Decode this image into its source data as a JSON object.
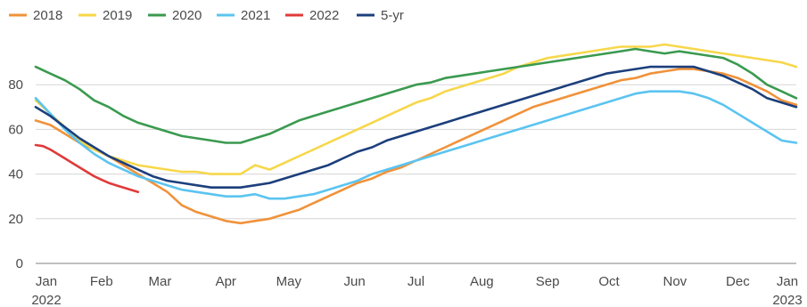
{
  "chart_data": {
    "type": "line",
    "title": "",
    "xlabel": "",
    "ylabel": "",
    "ylim": [
      0,
      100
    ],
    "grid": true,
    "legend_position": "top-left",
    "y_ticks": [
      "0",
      "20",
      "40",
      "60",
      "80"
    ],
    "x_ticks": [
      {
        "label": "Jan",
        "sublabel": "2022",
        "week": 1
      },
      {
        "label": "Feb",
        "sublabel": "",
        "week": 5.5
      },
      {
        "label": "Mar",
        "sublabel": "",
        "week": 9.5
      },
      {
        "label": "Apr",
        "sublabel": "",
        "week": 14
      },
      {
        "label": "May",
        "sublabel": "",
        "week": 18.3
      },
      {
        "label": "Jun",
        "sublabel": "",
        "week": 22.8
      },
      {
        "label": "Jul",
        "sublabel": "",
        "week": 27
      },
      {
        "label": "Aug",
        "sublabel": "",
        "week": 31.5
      },
      {
        "label": "Sep",
        "sublabel": "",
        "week": 36
      },
      {
        "label": "Oct",
        "sublabel": "",
        "week": 40.2
      },
      {
        "label": "Nov",
        "sublabel": "",
        "week": 44.7
      },
      {
        "label": "Dec",
        "sublabel": "",
        "week": 49
      },
      {
        "label": "Jan",
        "sublabel": "2023",
        "week": 53
      }
    ],
    "series": [
      {
        "name": "2018",
        "color": "#f0923a",
        "x": [
          1,
          2,
          3,
          4,
          5,
          6,
          7,
          8,
          9,
          10,
          11,
          12,
          13,
          14,
          15,
          16,
          17,
          18,
          19,
          20,
          21,
          22,
          23,
          24,
          25,
          26,
          27,
          28,
          29,
          30,
          31,
          32,
          33,
          34,
          35,
          36,
          37,
          38,
          39,
          40,
          41,
          42,
          43,
          44,
          45,
          46,
          47,
          48,
          49,
          50,
          51,
          52,
          53
        ],
        "values": [
          64,
          62,
          58,
          54,
          51,
          48,
          44,
          40,
          36,
          32,
          26,
          23,
          21,
          19,
          18,
          19,
          20,
          22,
          24,
          27,
          30,
          33,
          36,
          38,
          41,
          43,
          46,
          49,
          52,
          55,
          58,
          61,
          64,
          67,
          70,
          72,
          74,
          76,
          78,
          80,
          82,
          83,
          85,
          86,
          87,
          87,
          86,
          85,
          83,
          80,
          77,
          73,
          71
        ]
      },
      {
        "name": "2019",
        "color": "#f7d74a",
        "x": [
          1,
          2,
          3,
          4,
          5,
          6,
          7,
          8,
          9,
          10,
          11,
          12,
          13,
          14,
          15,
          16,
          17,
          18,
          19,
          20,
          21,
          22,
          23,
          24,
          25,
          26,
          27,
          28,
          29,
          30,
          31,
          32,
          33,
          34,
          35,
          36,
          37,
          38,
          39,
          40,
          41,
          42,
          43,
          44,
          45,
          46,
          47,
          48,
          49,
          50,
          51,
          52,
          53
        ],
        "values": [
          73,
          67,
          61,
          55,
          51,
          48,
          46,
          44,
          43,
          42,
          41,
          41,
          40,
          40,
          40,
          44,
          42,
          45,
          48,
          51,
          54,
          57,
          60,
          63,
          66,
          69,
          72,
          74,
          77,
          79,
          81,
          83,
          85,
          88,
          90,
          92,
          93,
          94,
          95,
          96,
          97,
          97,
          97,
          98,
          97,
          96,
          95,
          94,
          93,
          92,
          91,
          90,
          88
        ]
      },
      {
        "name": "2020",
        "color": "#3a9a4f",
        "x": [
          1,
          2,
          3,
          4,
          5,
          6,
          7,
          8,
          9,
          10,
          11,
          12,
          13,
          14,
          15,
          16,
          17,
          18,
          19,
          20,
          21,
          22,
          23,
          24,
          25,
          26,
          27,
          28,
          29,
          30,
          31,
          32,
          33,
          34,
          35,
          36,
          37,
          38,
          39,
          40,
          41,
          42,
          43,
          44,
          45,
          46,
          47,
          48,
          49,
          50,
          51,
          52,
          53
        ],
        "values": [
          88,
          85,
          82,
          78,
          73,
          70,
          66,
          63,
          61,
          59,
          57,
          56,
          55,
          54,
          54,
          56,
          58,
          61,
          64,
          66,
          68,
          70,
          72,
          74,
          76,
          78,
          80,
          81,
          83,
          84,
          85,
          86,
          87,
          88,
          89,
          90,
          91,
          92,
          93,
          94,
          95,
          96,
          95,
          94,
          95,
          94,
          93,
          92,
          89,
          85,
          80,
          77,
          74
        ]
      },
      {
        "name": "2021",
        "color": "#5bc4f0",
        "x": [
          1,
          2,
          3,
          4,
          5,
          6,
          7,
          8,
          9,
          10,
          11,
          12,
          13,
          14,
          15,
          16,
          17,
          18,
          19,
          20,
          21,
          22,
          23,
          24,
          25,
          26,
          27,
          28,
          29,
          30,
          31,
          32,
          33,
          34,
          35,
          36,
          37,
          38,
          39,
          40,
          41,
          42,
          43,
          44,
          45,
          46,
          47,
          48,
          49,
          50,
          51,
          52,
          53
        ],
        "values": [
          74,
          67,
          60,
          54,
          49,
          45,
          42,
          39,
          37,
          35,
          33,
          32,
          31,
          30,
          30,
          31,
          29,
          29,
          30,
          31,
          33,
          35,
          37,
          40,
          42,
          44,
          46,
          48,
          50,
          52,
          54,
          56,
          58,
          60,
          62,
          64,
          66,
          68,
          70,
          72,
          74,
          76,
          77,
          77,
          77,
          76,
          74,
          71,
          67,
          63,
          59,
          55,
          54
        ]
      },
      {
        "name": "2022",
        "color": "#e03a3a",
        "x": [
          1,
          1.5,
          2,
          2.5,
          3,
          3.5,
          4,
          4.5,
          5,
          5.5,
          6,
          6.5,
          7,
          7.5,
          8
        ],
        "values": [
          53,
          52.5,
          51,
          49,
          47,
          45,
          43,
          41,
          39,
          37.5,
          36,
          35,
          34,
          33,
          32
        ]
      },
      {
        "name": "5-yr",
        "color": "#1c3f7c",
        "x": [
          1,
          2,
          3,
          4,
          5,
          6,
          7,
          8,
          9,
          10,
          11,
          12,
          13,
          14,
          15,
          16,
          17,
          18,
          19,
          20,
          21,
          22,
          23,
          24,
          25,
          26,
          27,
          28,
          29,
          30,
          31,
          32,
          33,
          34,
          35,
          36,
          37,
          38,
          39,
          40,
          41,
          42,
          43,
          44,
          45,
          46,
          47,
          48,
          49,
          50,
          51,
          52,
          53
        ],
        "values": [
          70,
          66,
          61,
          56,
          52,
          48,
          45,
          42,
          39,
          37,
          36,
          35,
          34,
          34,
          34,
          35,
          36,
          38,
          40,
          42,
          44,
          47,
          50,
          52,
          55,
          57,
          59,
          61,
          63,
          65,
          67,
          69,
          71,
          73,
          75,
          77,
          79,
          81,
          83,
          85,
          86,
          87,
          88,
          88,
          88,
          88,
          86,
          84,
          81,
          78,
          74,
          72,
          70
        ]
      }
    ]
  }
}
